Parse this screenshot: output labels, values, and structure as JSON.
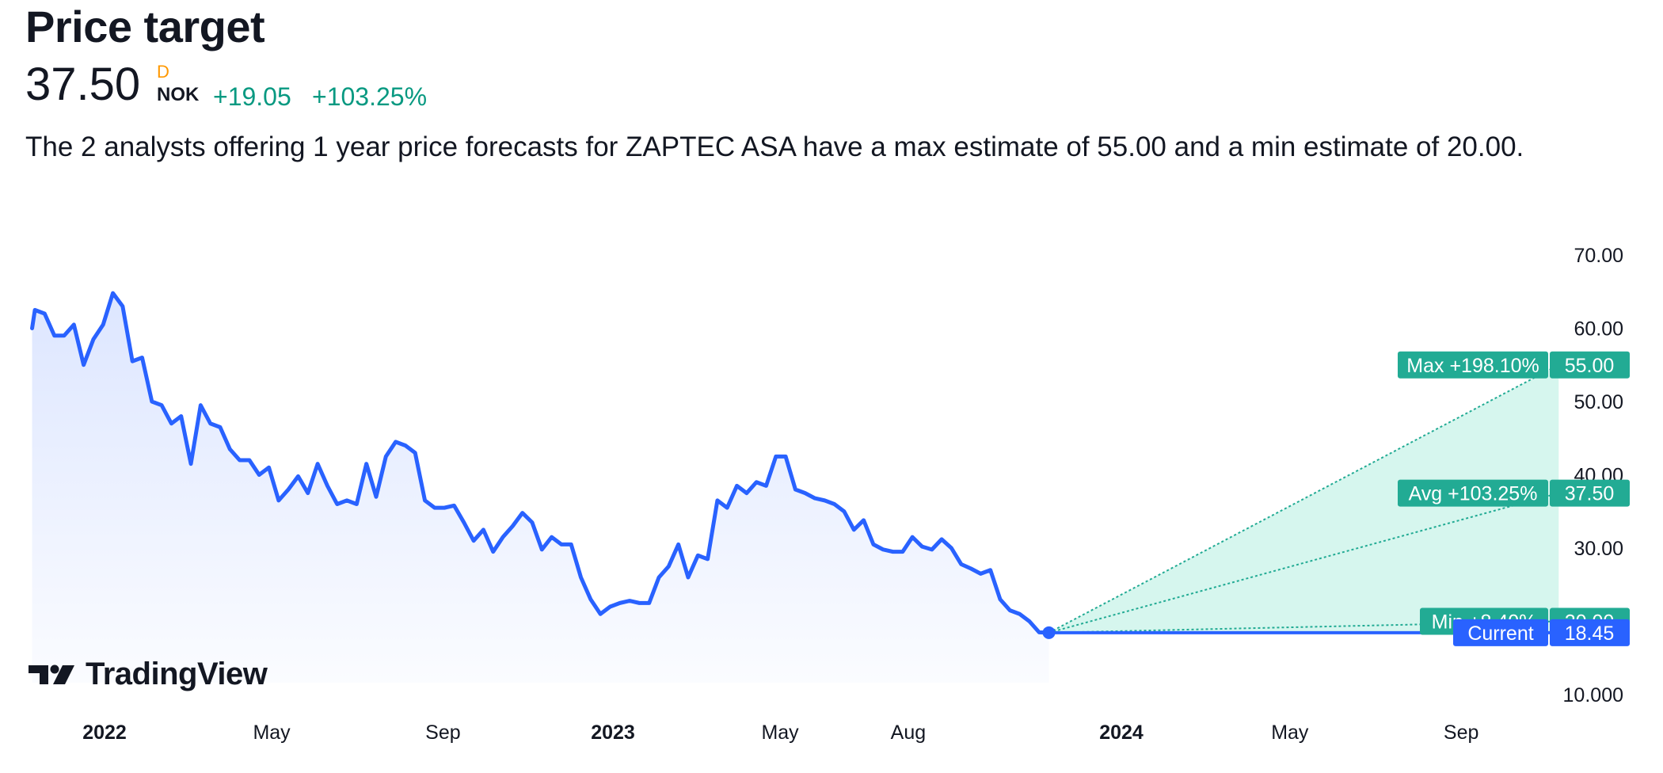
{
  "header": {
    "title": "Price target",
    "price": "37.50",
    "flag": "D",
    "currency": "NOK",
    "change": "+19.05",
    "change_pct": "+103.25%"
  },
  "description": "The 2 analysts offering 1 year price forecasts for ZAPTEC ASA have a max estimate of 55.00 and a min estimate of 20.00.",
  "brand": {
    "logo_text": "TradingView"
  },
  "colors": {
    "line": "#2962ff",
    "forecast_fill": "#d6f6ee",
    "forecast_line": "#22ab94",
    "label_green": "#22ab94",
    "label_blue": "#2962ff",
    "positive_text": "#089981",
    "flag": "#ff9800"
  },
  "chart_data": {
    "type": "line",
    "ylim": [
      10,
      70
    ],
    "yticks": [
      "70.00",
      "60.00",
      "50.00",
      "40.00",
      "30.00",
      "10.000"
    ],
    "xticks": [
      {
        "label": "2022",
        "bold": true,
        "date": "2022-01-01"
      },
      {
        "label": "May",
        "bold": false,
        "date": "2022-05-01"
      },
      {
        "label": "Sep",
        "bold": false,
        "date": "2022-09-01"
      },
      {
        "label": "2023",
        "bold": true,
        "date": "2023-01-01"
      },
      {
        "label": "May",
        "bold": false,
        "date": "2023-05-01"
      },
      {
        "label": "Aug",
        "bold": false,
        "date": "2023-08-01"
      },
      {
        "label": "2024",
        "bold": true,
        "date": "2024-01-01"
      },
      {
        "label": "May",
        "bold": false,
        "date": "2024-05-01"
      },
      {
        "label": "Sep",
        "bold": false,
        "date": "2024-09-01"
      }
    ],
    "series": [
      {
        "values": [
          [
            "2021-11-10",
            60.0
          ],
          [
            "2021-11-12",
            62.5
          ],
          [
            "2021-11-19",
            62.0
          ],
          [
            "2021-11-26",
            59.0
          ],
          [
            "2021-12-03",
            59.0
          ],
          [
            "2021-12-10",
            60.5
          ],
          [
            "2021-12-17",
            55.0
          ],
          [
            "2021-12-24",
            58.5
          ],
          [
            "2021-12-31",
            60.5
          ],
          [
            "2022-01-07",
            64.8
          ],
          [
            "2022-01-14",
            63.0
          ],
          [
            "2022-01-21",
            55.5
          ],
          [
            "2022-01-28",
            56.0
          ],
          [
            "2022-02-04",
            50.0
          ],
          [
            "2022-02-11",
            49.5
          ],
          [
            "2022-02-18",
            47.0
          ],
          [
            "2022-02-25",
            48.0
          ],
          [
            "2022-03-04",
            41.5
          ],
          [
            "2022-03-11",
            49.5
          ],
          [
            "2022-03-18",
            47.0
          ],
          [
            "2022-03-25",
            46.5
          ],
          [
            "2022-04-01",
            43.5
          ],
          [
            "2022-04-08",
            42.0
          ],
          [
            "2022-04-15",
            42.0
          ],
          [
            "2022-04-22",
            40.0
          ],
          [
            "2022-04-29",
            41.0
          ],
          [
            "2022-05-06",
            36.5
          ],
          [
            "2022-05-13",
            38.0
          ],
          [
            "2022-05-20",
            39.8
          ],
          [
            "2022-05-27",
            37.5
          ],
          [
            "2022-06-03",
            41.5
          ],
          [
            "2022-06-10",
            38.5
          ],
          [
            "2022-06-17",
            36.0
          ],
          [
            "2022-06-24",
            36.5
          ],
          [
            "2022-07-01",
            36.0
          ],
          [
            "2022-07-08",
            41.5
          ],
          [
            "2022-07-15",
            37.0
          ],
          [
            "2022-07-22",
            42.5
          ],
          [
            "2022-07-29",
            44.5
          ],
          [
            "2022-08-05",
            44.0
          ],
          [
            "2022-08-12",
            43.0
          ],
          [
            "2022-08-19",
            36.5
          ],
          [
            "2022-08-26",
            35.5
          ],
          [
            "2022-09-02",
            35.5
          ],
          [
            "2022-09-09",
            35.8
          ],
          [
            "2022-09-16",
            33.5
          ],
          [
            "2022-09-23",
            31.0
          ],
          [
            "2022-09-30",
            32.5
          ],
          [
            "2022-10-07",
            29.5
          ],
          [
            "2022-10-14",
            31.5
          ],
          [
            "2022-10-21",
            33.0
          ],
          [
            "2022-10-28",
            34.8
          ],
          [
            "2022-11-04",
            33.5
          ],
          [
            "2022-11-11",
            29.8
          ],
          [
            "2022-11-18",
            31.5
          ],
          [
            "2022-11-25",
            30.5
          ],
          [
            "2022-12-02",
            30.5
          ],
          [
            "2022-12-09",
            26.0
          ],
          [
            "2022-12-16",
            23.0
          ],
          [
            "2022-12-23",
            21.0
          ],
          [
            "2022-12-30",
            22.0
          ],
          [
            "2023-01-06",
            22.5
          ],
          [
            "2023-01-13",
            22.8
          ],
          [
            "2023-01-20",
            22.5
          ],
          [
            "2023-01-27",
            22.5
          ],
          [
            "2023-02-03",
            26.0
          ],
          [
            "2023-02-10",
            27.5
          ],
          [
            "2023-02-17",
            30.5
          ],
          [
            "2023-02-24",
            26.0
          ],
          [
            "2023-03-03",
            29.0
          ],
          [
            "2023-03-10",
            28.5
          ],
          [
            "2023-03-17",
            36.5
          ],
          [
            "2023-03-24",
            35.5
          ],
          [
            "2023-03-31",
            38.5
          ],
          [
            "2023-04-07",
            37.5
          ],
          [
            "2023-04-14",
            39.0
          ],
          [
            "2023-04-21",
            38.5
          ],
          [
            "2023-04-28",
            42.5
          ],
          [
            "2023-05-05",
            42.5
          ],
          [
            "2023-05-12",
            38.0
          ],
          [
            "2023-05-19",
            37.5
          ],
          [
            "2023-05-26",
            36.8
          ],
          [
            "2023-06-02",
            36.5
          ],
          [
            "2023-06-09",
            36.0
          ],
          [
            "2023-06-16",
            35.0
          ],
          [
            "2023-06-23",
            32.5
          ],
          [
            "2023-06-30",
            33.8
          ],
          [
            "2023-07-07",
            30.5
          ],
          [
            "2023-07-14",
            29.8
          ],
          [
            "2023-07-21",
            29.5
          ],
          [
            "2023-07-28",
            29.5
          ],
          [
            "2023-08-04",
            31.5
          ],
          [
            "2023-08-11",
            30.2
          ],
          [
            "2023-08-18",
            29.8
          ],
          [
            "2023-08-25",
            31.2
          ],
          [
            "2023-09-01",
            30.0
          ],
          [
            "2023-09-08",
            27.8
          ],
          [
            "2023-09-15",
            27.2
          ],
          [
            "2023-09-22",
            26.5
          ],
          [
            "2023-09-29",
            27.0
          ],
          [
            "2023-10-06",
            23.0
          ],
          [
            "2023-10-13",
            21.5
          ],
          [
            "2023-10-20",
            21.0
          ],
          [
            "2023-10-27",
            20.0
          ],
          [
            "2023-11-03",
            18.5
          ],
          [
            "2023-11-10",
            18.45
          ]
        ]
      }
    ],
    "forecast": {
      "start": [
        "2023-11-10",
        18.45
      ],
      "end_date": "2024-11-10",
      "max": {
        "label": "Max +198.10%",
        "value": 55.0,
        "value_label": "55.00"
      },
      "avg": {
        "label": "Avg +103.25%",
        "value": 37.5,
        "value_label": "37.50"
      },
      "min": {
        "label": "Min +8.40%",
        "value": 20.0,
        "value_label": "20.00"
      },
      "current": {
        "label": "Current",
        "value": 18.45,
        "value_label": "18.45"
      }
    }
  }
}
